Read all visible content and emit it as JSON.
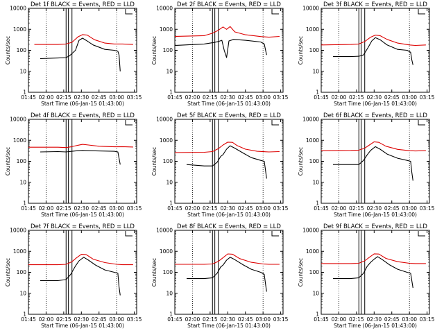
{
  "figure": {
    "series_colors": {
      "events": "#000000",
      "lld": "#dd0000"
    },
    "x_ticks": [
      "01:45",
      "02:00",
      "02:15",
      "02:30",
      "02:45",
      "03:00",
      "03:15"
    ],
    "y_ticks": [
      "1",
      "10",
      "100",
      "1000",
      "10000"
    ],
    "xlabel": "Start Time (06-Jan-15 01:43:00)",
    "ylabel": "Counts/sec"
  },
  "chart_data": [
    {
      "type": "line",
      "title": "Det 1f BLACK = Events, RED = LLD",
      "xlabel": "Start Time (06-Jan-15 01:43:00)",
      "ylabel": "Counts/sec",
      "yscale": "log",
      "ylim": [
        1,
        10000
      ],
      "xlim_minutes_after_0143": [
        2,
        94
      ],
      "x_ticks": [
        "01:45",
        "02:00",
        "02:15",
        "02:30",
        "02:45",
        "03:00",
        "03:15"
      ],
      "vertical_solid_lines_at": [
        "02:17",
        "02:19",
        "02:22"
      ],
      "vertical_dotted_lines_at": [
        "02:00",
        "03:00"
      ],
      "series": [
        {
          "name": "Events",
          "color": "#000000",
          "t": [
            "01:55",
            "02:10",
            "02:17",
            "02:20",
            "02:25",
            "02:28",
            "02:31",
            "02:34",
            "02:40",
            "02:50",
            "02:58",
            "03:01",
            "03:02",
            "03:03"
          ],
          "values": [
            40,
            43,
            45,
            55,
            100,
            300,
            380,
            300,
            180,
            110,
            100,
            90,
            60,
            10
          ]
        },
        {
          "name": "LLD",
          "color": "#dd0000",
          "t": [
            "01:50",
            "02:10",
            "02:17",
            "02:22",
            "02:27",
            "02:31",
            "02:35",
            "02:41",
            "02:50",
            "02:58",
            "03:05",
            "03:14"
          ],
          "values": [
            190,
            190,
            200,
            240,
            430,
            560,
            530,
            320,
            220,
            200,
            200,
            190
          ]
        }
      ]
    },
    {
      "type": "line",
      "title": "Det 2f BLACK = Events, RED = LLD",
      "xlabel": "Start Time (06-Jan-15 01:43:00)",
      "ylabel": "Counts/sec",
      "yscale": "log",
      "ylim": [
        1,
        10000
      ],
      "xlim_minutes_after_0143": [
        2,
        94
      ],
      "x_ticks": [
        "01:45",
        "02:00",
        "02:15",
        "02:30",
        "02:45",
        "03:00",
        "03:15"
      ],
      "vertical_solid_lines_at": [
        "02:17",
        "02:19",
        "02:22"
      ],
      "vertical_dotted_lines_at": [
        "02:00",
        "03:00"
      ],
      "series": [
        {
          "name": "Events",
          "color": "#000000",
          "t": [
            "01:45",
            "02:10",
            "02:17",
            "02:22",
            "02:25",
            "02:27",
            "02:29",
            "02:31",
            "02:35",
            "02:45",
            "02:58",
            "03:01",
            "03:03"
          ],
          "values": [
            170,
            200,
            230,
            260,
            300,
            100,
            45,
            280,
            330,
            300,
            250,
            200,
            60
          ]
        },
        {
          "name": "LLD",
          "color": "#dd0000",
          "t": [
            "01:45",
            "02:10",
            "02:17",
            "02:22",
            "02:26",
            "02:29",
            "02:32",
            "02:36",
            "02:45",
            "02:58",
            "03:05",
            "03:14"
          ],
          "values": [
            460,
            500,
            650,
            900,
            1300,
            1000,
            1350,
            750,
            550,
            450,
            420,
            460
          ]
        }
      ]
    },
    {
      "type": "line",
      "title": "Det 3f BLACK = Events, RED = LLD",
      "xlabel": "Start Time (06-Jan-15 01:43:00)",
      "ylabel": "Counts/sec",
      "yscale": "log",
      "ylim": [
        1,
        10000
      ],
      "xlim_minutes_after_0143": [
        2,
        94
      ],
      "x_ticks": [
        "01:45",
        "02:00",
        "02:15",
        "02:30",
        "02:45",
        "03:00",
        "03:15"
      ],
      "vertical_solid_lines_at": [
        "02:17",
        "02:19",
        "02:22"
      ],
      "vertical_dotted_lines_at": [
        "02:00",
        "03:00"
      ],
      "series": [
        {
          "name": "Events",
          "color": "#000000",
          "t": [
            "01:55",
            "02:10",
            "02:17",
            "02:21",
            "02:25",
            "02:28",
            "02:31",
            "02:35",
            "02:41",
            "02:50",
            "02:58",
            "03:01",
            "03:02",
            "03:03"
          ],
          "values": [
            50,
            50,
            52,
            60,
            140,
            280,
            400,
            320,
            180,
            110,
            100,
            80,
            35,
            20
          ]
        },
        {
          "name": "LLD",
          "color": "#dd0000",
          "t": [
            "01:45",
            "02:10",
            "02:17",
            "02:22",
            "02:27",
            "02:31",
            "02:35",
            "02:41",
            "02:50",
            "03:00",
            "03:05",
            "03:14"
          ],
          "values": [
            180,
            190,
            200,
            260,
            420,
            530,
            500,
            330,
            220,
            180,
            170,
            180
          ]
        }
      ]
    },
    {
      "type": "line",
      "title": "Det 4f BLACK = Events, RED = LLD",
      "xlabel": "Start Time (06-Jan-15 01:43:00)",
      "ylabel": "Counts/sec",
      "yscale": "log",
      "ylim": [
        1,
        10000
      ],
      "xlim_minutes_after_0143": [
        2,
        94
      ],
      "x_ticks": [
        "01:45",
        "02:00",
        "02:15",
        "02:30",
        "02:45",
        "03:00",
        "03:15"
      ],
      "vertical_solid_lines_at": [
        "02:17",
        "02:19",
        "02:22"
      ],
      "vertical_dotted_lines_at": [
        "02:00",
        "03:00"
      ],
      "series": [
        {
          "name": "Events",
          "color": "#000000",
          "t": [
            "01:55",
            "02:10",
            "02:17",
            "02:22",
            "02:27",
            "02:31",
            "02:36",
            "02:45",
            "02:58",
            "03:01",
            "03:03"
          ],
          "values": [
            280,
            290,
            280,
            300,
            320,
            330,
            320,
            310,
            300,
            280,
            70
          ]
        },
        {
          "name": "LLD",
          "color": "#dd0000",
          "t": [
            "01:45",
            "02:10",
            "02:17",
            "02:22",
            "02:27",
            "02:31",
            "02:36",
            "02:45",
            "02:58",
            "03:05",
            "03:14"
          ],
          "values": [
            470,
            470,
            450,
            500,
            580,
            640,
            600,
            520,
            490,
            500,
            480
          ]
        }
      ]
    },
    {
      "type": "line",
      "title": "Det 5f BLACK = Events, RED = LLD",
      "xlabel": "Start Time (06-Jan-15 01:43:00)",
      "ylabel": "Counts/sec",
      "yscale": "log",
      "ylim": [
        1,
        10000
      ],
      "xlim_minutes_after_0143": [
        2,
        94
      ],
      "x_ticks": [
        "01:45",
        "02:00",
        "02:15",
        "02:30",
        "02:45",
        "03:00",
        "03:15"
      ],
      "vertical_solid_lines_at": [
        "02:17",
        "02:19",
        "02:22"
      ],
      "vertical_dotted_lines_at": [
        "02:00",
        "03:00"
      ],
      "series": [
        {
          "name": "Events",
          "color": "#000000",
          "t": [
            "01:55",
            "02:10",
            "02:17",
            "02:21",
            "02:24",
            "02:26",
            "02:29",
            "02:32",
            "02:36",
            "02:43",
            "02:50",
            "02:58",
            "03:01",
            "03:02",
            "03:03"
          ],
          "values": [
            70,
            60,
            60,
            90,
            170,
            210,
            380,
            550,
            420,
            250,
            150,
            110,
            100,
            40,
            15
          ]
        },
        {
          "name": "LLD",
          "color": "#dd0000",
          "t": [
            "01:45",
            "02:10",
            "02:17",
            "02:22",
            "02:26",
            "02:30",
            "02:34",
            "02:38",
            "02:45",
            "02:55",
            "03:05",
            "03:14"
          ],
          "values": [
            260,
            270,
            290,
            400,
            600,
            820,
            800,
            560,
            380,
            300,
            280,
            290
          ]
        }
      ]
    },
    {
      "type": "line",
      "title": "Det 6f BLACK = Events, RED = LLD",
      "xlabel": "Start Time (06-Jan-15 01:43:00)",
      "ylabel": "Counts/sec",
      "yscale": "log",
      "ylim": [
        1,
        10000
      ],
      "xlim_minutes_after_0143": [
        2,
        94
      ],
      "x_ticks": [
        "01:45",
        "02:00",
        "02:15",
        "02:30",
        "02:45",
        "03:00",
        "03:15"
      ],
      "vertical_solid_lines_at": [
        "02:17",
        "02:19",
        "02:22"
      ],
      "vertical_dotted_lines_at": [
        "02:00",
        "03:00"
      ],
      "series": [
        {
          "name": "Events",
          "color": "#000000",
          "t": [
            "01:55",
            "02:10",
            "02:17",
            "02:21",
            "02:24",
            "02:27",
            "02:31",
            "02:35",
            "02:41",
            "02:50",
            "02:58",
            "03:01",
            "03:02",
            "03:03"
          ],
          "values": [
            70,
            70,
            70,
            110,
            200,
            330,
            500,
            380,
            220,
            140,
            110,
            100,
            30,
            12
          ]
        },
        {
          "name": "LLD",
          "color": "#dd0000",
          "t": [
            "01:45",
            "02:10",
            "02:17",
            "02:22",
            "02:26",
            "02:30",
            "02:34",
            "02:40",
            "02:50",
            "03:00",
            "03:05",
            "03:14"
          ],
          "values": [
            320,
            330,
            340,
            420,
            600,
            850,
            800,
            520,
            370,
            320,
            310,
            320
          ]
        }
      ]
    },
    {
      "type": "line",
      "title": "Det 7f BLACK = Events, RED = LLD",
      "xlabel": "Start Time (06-Jan-15 01:43:00)",
      "ylabel": "Counts/sec",
      "yscale": "log",
      "ylim": [
        1,
        10000
      ],
      "xlim_minutes_after_0143": [
        2,
        94
      ],
      "x_ticks": [
        "01:45",
        "02:00",
        "02:15",
        "02:30",
        "02:45",
        "03:00",
        "03:15"
      ],
      "vertical_solid_lines_at": [
        "02:17",
        "02:19",
        "02:22"
      ],
      "vertical_dotted_lines_at": [
        "02:00",
        "03:00"
      ],
      "series": [
        {
          "name": "Events",
          "color": "#000000",
          "t": [
            "01:55",
            "02:10",
            "02:17",
            "02:21",
            "02:25",
            "02:28",
            "02:32",
            "02:36",
            "02:42",
            "02:50",
            "02:58",
            "03:01",
            "03:02",
            "03:03"
          ],
          "values": [
            40,
            40,
            45,
            80,
            200,
            350,
            520,
            380,
            220,
            130,
            100,
            90,
            20,
            8
          ]
        },
        {
          "name": "LLD",
          "color": "#dd0000",
          "t": [
            "01:45",
            "02:10",
            "02:17",
            "02:22",
            "02:26",
            "02:30",
            "02:34",
            "02:40",
            "02:50",
            "03:00",
            "03:05",
            "03:14"
          ],
          "values": [
            230,
            230,
            240,
            320,
            500,
            720,
            700,
            420,
            290,
            240,
            230,
            230
          ]
        }
      ]
    },
    {
      "type": "line",
      "title": "Det 8f BLACK = Events, RED = LLD",
      "xlabel": "Start Time (06-Jan-15 01:43:00)",
      "ylabel": "Counts/sec",
      "yscale": "log",
      "ylim": [
        1,
        10000
      ],
      "xlim_minutes_after_0143": [
        2,
        94
      ],
      "x_ticks": [
        "01:45",
        "02:00",
        "02:15",
        "02:30",
        "02:45",
        "03:00",
        "03:15"
      ],
      "vertical_solid_lines_at": [
        "02:17",
        "02:19",
        "02:22"
      ],
      "vertical_dotted_lines_at": [
        "02:00",
        "03:00"
      ],
      "series": [
        {
          "name": "Events",
          "color": "#000000",
          "t": [
            "01:55",
            "02:10",
            "02:17",
            "02:21",
            "02:24",
            "02:26",
            "02:29",
            "02:32",
            "02:36",
            "02:43",
            "02:50",
            "02:58",
            "03:01",
            "03:02",
            "03:03"
          ],
          "values": [
            50,
            50,
            55,
            90,
            180,
            220,
            380,
            520,
            400,
            230,
            140,
            100,
            80,
            30,
            12
          ]
        },
        {
          "name": "LLD",
          "color": "#dd0000",
          "t": [
            "01:45",
            "02:10",
            "02:17",
            "02:22",
            "02:26",
            "02:30",
            "02:34",
            "02:40",
            "02:50",
            "03:00",
            "03:05",
            "03:14"
          ],
          "values": [
            240,
            240,
            250,
            330,
            500,
            750,
            730,
            450,
            300,
            250,
            240,
            240
          ]
        }
      ]
    },
    {
      "type": "line",
      "title": "Det 9f BLACK = Events, RED = LLD",
      "xlabel": "Start Time (06-Jan-15 01:43:00)",
      "ylabel": "Counts/sec",
      "yscale": "log",
      "ylim": [
        1,
        10000
      ],
      "xlim_minutes_after_0143": [
        2,
        94
      ],
      "x_ticks": [
        "01:45",
        "02:00",
        "02:15",
        "02:30",
        "02:45",
        "03:00",
        "03:15"
      ],
      "vertical_solid_lines_at": [
        "02:17",
        "02:19",
        "02:22"
      ],
      "vertical_dotted_lines_at": [
        "02:00",
        "03:00"
      ],
      "series": [
        {
          "name": "Events",
          "color": "#000000",
          "t": [
            "01:55",
            "02:10",
            "02:17",
            "02:21",
            "02:24",
            "02:27",
            "02:30",
            "02:33",
            "02:37",
            "02:43",
            "02:50",
            "02:58",
            "03:01",
            "03:02",
            "03:03"
          ],
          "values": [
            50,
            50,
            55,
            90,
            190,
            300,
            420,
            560,
            400,
            230,
            140,
            100,
            90,
            40,
            18
          ]
        },
        {
          "name": "LLD",
          "color": "#dd0000",
          "t": [
            "01:45",
            "02:10",
            "02:17",
            "02:22",
            "02:26",
            "02:30",
            "02:34",
            "02:40",
            "02:50",
            "03:00",
            "03:05",
            "03:14"
          ],
          "values": [
            260,
            260,
            270,
            350,
            520,
            760,
            740,
            460,
            320,
            270,
            260,
            260
          ]
        }
      ]
    }
  ]
}
